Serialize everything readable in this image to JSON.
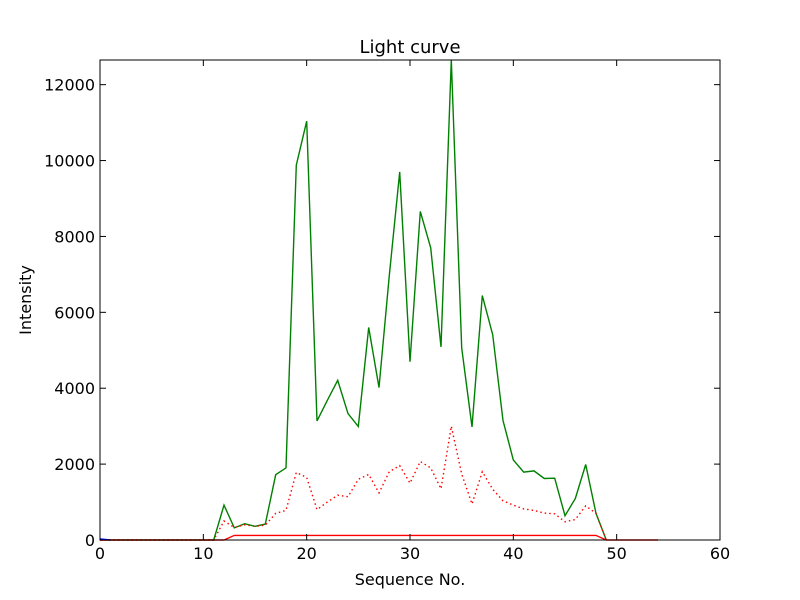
{
  "chart_data": {
    "type": "line",
    "title": "Light curve",
    "xlabel": "Sequence No.",
    "ylabel": "Intensity",
    "xlim": [
      0,
      60
    ],
    "ylim": [
      0,
      12650
    ],
    "xticks": [
      0,
      10,
      20,
      30,
      40,
      50,
      60
    ],
    "yticks": [
      0,
      2000,
      4000,
      6000,
      8000,
      10000,
      12000
    ],
    "grid": false,
    "legend": "none",
    "series": [
      {
        "color": "#008000",
        "style": "solid",
        "x": [
          0,
          1,
          2,
          3,
          4,
          5,
          6,
          7,
          8,
          9,
          10,
          11,
          12,
          13,
          14,
          15,
          16,
          17,
          18,
          19,
          20,
          21,
          22,
          23,
          24,
          25,
          26,
          27,
          28,
          29,
          30,
          31,
          32,
          33,
          34,
          35,
          36,
          37,
          38,
          39,
          40,
          41,
          42,
          43,
          44,
          45,
          46,
          47,
          48,
          49
        ],
        "y": [
          0,
          0,
          0,
          0,
          0,
          0,
          0,
          0,
          0,
          0,
          0,
          0,
          920,
          320,
          430,
          360,
          420,
          1720,
          1900,
          9880,
          11040,
          3140,
          3680,
          4210,
          3330,
          2990,
          5600,
          4020,
          6970,
          9700,
          4700,
          8660,
          7700,
          5090,
          12650,
          5060,
          2980,
          6440,
          5410,
          3150,
          2110,
          1790,
          1820,
          1620,
          1630,
          640,
          1090,
          1990,
          700,
          0
        ]
      },
      {
        "color": "#ff0000",
        "style": "dotted",
        "x": [
          0,
          1,
          2,
          3,
          4,
          5,
          6,
          7,
          8,
          9,
          10,
          11,
          12,
          13,
          14,
          15,
          16,
          17,
          18,
          19,
          20,
          21,
          22,
          23,
          24,
          25,
          26,
          27,
          28,
          29,
          30,
          31,
          32,
          33,
          34,
          35,
          36,
          37,
          38,
          39,
          40,
          41,
          42,
          43,
          44,
          45,
          46,
          47,
          48,
          49
        ],
        "y": [
          0,
          0,
          0,
          0,
          0,
          0,
          0,
          0,
          0,
          0,
          0,
          0,
          500,
          330,
          400,
          360,
          390,
          700,
          780,
          1780,
          1650,
          800,
          1000,
          1180,
          1140,
          1600,
          1730,
          1240,
          1800,
          1960,
          1500,
          2070,
          1900,
          1350,
          3000,
          1740,
          950,
          1800,
          1340,
          1030,
          920,
          820,
          780,
          710,
          690,
          480,
          540,
          900,
          700,
          0
        ]
      },
      {
        "color": "#ff0000",
        "style": "solid",
        "x": [
          0,
          1,
          2,
          3,
          4,
          5,
          6,
          7,
          8,
          9,
          10,
          11,
          12,
          13,
          14,
          15,
          16,
          17,
          18,
          19,
          20,
          21,
          22,
          23,
          24,
          25,
          26,
          27,
          28,
          29,
          30,
          31,
          32,
          33,
          34,
          35,
          36,
          37,
          38,
          39,
          40,
          41,
          42,
          43,
          44,
          45,
          46,
          47,
          48,
          49,
          50,
          51,
          52,
          53,
          54
        ],
        "y": [
          0,
          0,
          0,
          0,
          0,
          0,
          0,
          0,
          0,
          0,
          0,
          0,
          0,
          120,
          120,
          120,
          120,
          120,
          120,
          120,
          120,
          120,
          120,
          120,
          120,
          120,
          120,
          120,
          120,
          120,
          120,
          120,
          120,
          120,
          120,
          120,
          120,
          120,
          120,
          120,
          120,
          120,
          120,
          120,
          120,
          120,
          120,
          120,
          120,
          0,
          0,
          0,
          0,
          0,
          0
        ]
      },
      {
        "color": "#0000ff",
        "style": "solid",
        "x": [
          0,
          1
        ],
        "y": [
          30,
          0
        ]
      }
    ]
  }
}
